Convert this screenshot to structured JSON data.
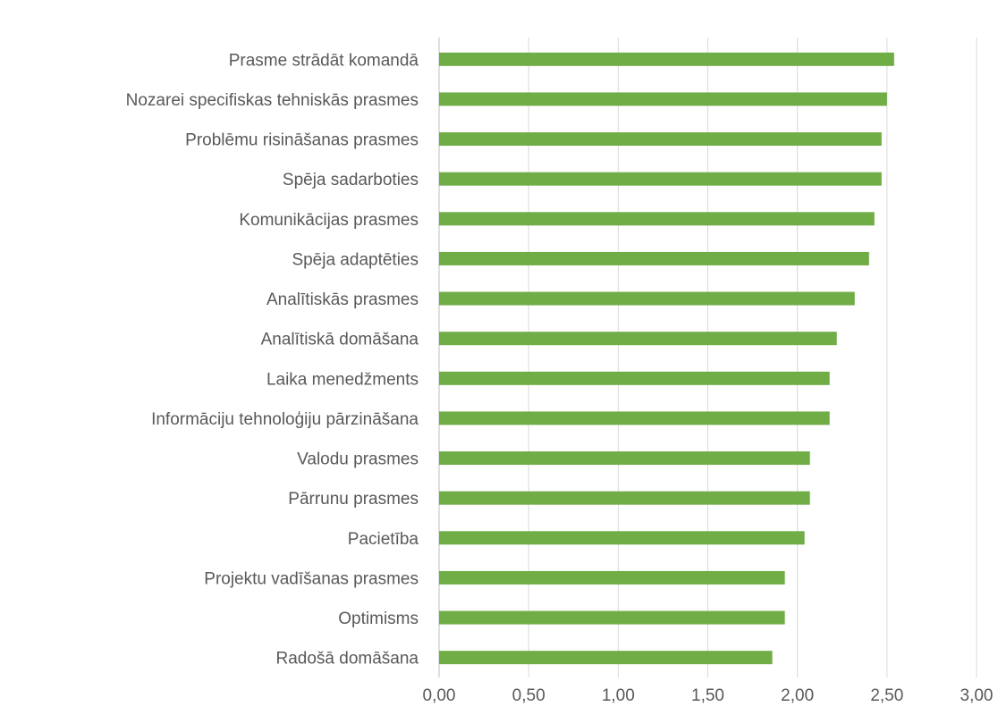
{
  "chart_data": {
    "type": "bar",
    "orientation": "horizontal",
    "categories": [
      "Prasme strādāt komandā",
      "Nozarei specifiskas tehniskās prasmes",
      "Problēmu risināšanas prasmes",
      "Spēja sadarboties",
      "Komunikācijas prasmes",
      "Spēja adaptēties",
      "Analītiskās prasmes",
      "Analītiskā domāšana",
      "Laika menedžments",
      "Informāciju tehnoloģiju pārzināšana",
      "Valodu prasmes",
      "Pārrunu prasmes",
      "Pacietība",
      "Projektu vadīšanas prasmes",
      "Optimisms",
      "Radošā domāšana"
    ],
    "values": [
      2.54,
      2.5,
      2.47,
      2.47,
      2.43,
      2.4,
      2.32,
      2.22,
      2.18,
      2.18,
      2.07,
      2.07,
      2.04,
      1.93,
      1.93,
      1.86
    ],
    "xlim": [
      0,
      3
    ],
    "xticks": [
      "0,00",
      "0,50",
      "1,00",
      "1,50",
      "2,00",
      "2,50",
      "3,00"
    ],
    "xtick_values": [
      0,
      0.5,
      1,
      1.5,
      2,
      2.5,
      3
    ],
    "grid": "vertical",
    "bar_color": "#70ad47",
    "title": "",
    "xlabel": "",
    "ylabel": ""
  }
}
